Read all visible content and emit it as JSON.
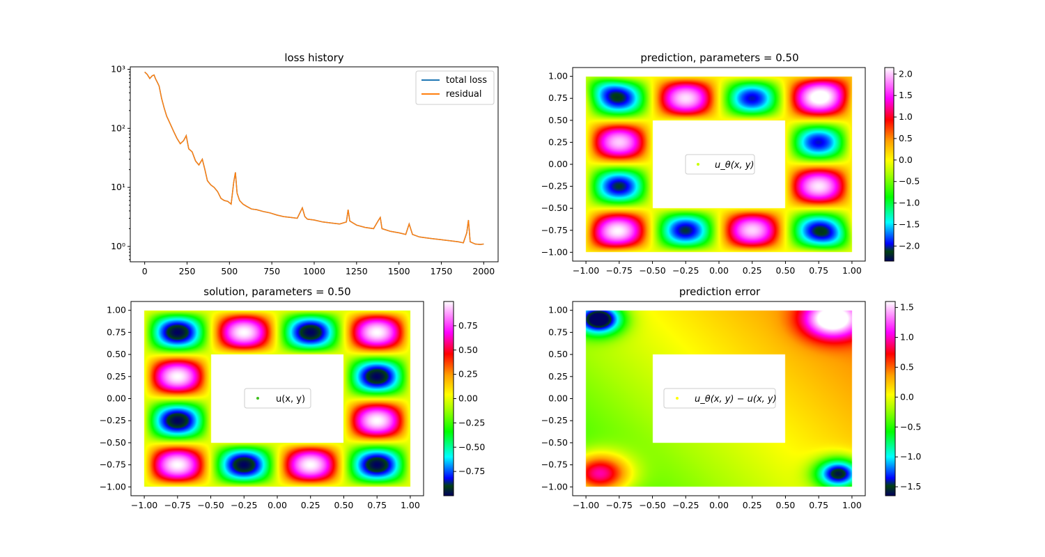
{
  "chart_data": [
    {
      "type": "line",
      "title": "loss history",
      "xlabel": "",
      "ylabel": "",
      "yscale": "log",
      "xlim": [
        -85,
        2085
      ],
      "ylim": [
        0.55,
        1100
      ],
      "x_ticks": [
        0,
        250,
        500,
        750,
        1000,
        1250,
        1500,
        1750,
        2000
      ],
      "x_tick_labels": [
        "0",
        "250",
        "500",
        "750",
        "1000",
        "1250",
        "1500",
        "1750",
        "2000"
      ],
      "y_ticks": [
        1,
        10,
        100,
        1000
      ],
      "y_tick_labels": [
        "10⁰",
        "10¹",
        "10²",
        "10³"
      ],
      "legend": {
        "position": "top-right",
        "entries": [
          "total loss",
          "residual"
        ]
      },
      "series": [
        {
          "name": "total loss",
          "color": "#1f77b4",
          "x": [
            0,
            15,
            30,
            45,
            55,
            65,
            75,
            85,
            100,
            115,
            130,
            150,
            170,
            190,
            210,
            230,
            245,
            260,
            280,
            300,
            320,
            340,
            355,
            370,
            390,
            410,
            430,
            450,
            470,
            490,
            510,
            525,
            535,
            545,
            560,
            580,
            600,
            630,
            660,
            700,
            740,
            780,
            820,
            860,
            900,
            930,
            945,
            960,
            1000,
            1050,
            1100,
            1150,
            1190,
            1200,
            1210,
            1250,
            1300,
            1350,
            1380,
            1390,
            1400,
            1450,
            1500,
            1540,
            1560,
            1580,
            1620,
            1660,
            1700,
            1750,
            1800,
            1850,
            1880,
            1900,
            1910,
            1920,
            1950,
            1980,
            2000
          ],
          "y": [
            900,
            820,
            700,
            780,
            800,
            680,
            600,
            520,
            320,
            220,
            160,
            120,
            90,
            68,
            55,
            62,
            75,
            45,
            40,
            28,
            24,
            30,
            20,
            13,
            11,
            10,
            8.5,
            6.5,
            6,
            5.8,
            5.2,
            12,
            18,
            8,
            6,
            5.2,
            4.8,
            4.3,
            4.2,
            3.9,
            3.7,
            3.4,
            3.2,
            3.1,
            3.0,
            4.5,
            3.2,
            2.9,
            2.8,
            2.6,
            2.5,
            2.4,
            2.6,
            4.2,
            2.7,
            2.3,
            2.1,
            2.0,
            2.8,
            3.1,
            2.0,
            1.8,
            1.7,
            1.6,
            2.4,
            1.6,
            1.45,
            1.4,
            1.35,
            1.3,
            1.25,
            1.2,
            1.15,
            1.7,
            2.8,
            1.2,
            1.1,
            1.08,
            1.1
          ]
        },
        {
          "name": "residual",
          "color": "#ff7f0e",
          "x": [
            0,
            15,
            30,
            45,
            55,
            65,
            75,
            85,
            100,
            115,
            130,
            150,
            170,
            190,
            210,
            230,
            245,
            260,
            280,
            300,
            320,
            340,
            355,
            370,
            390,
            410,
            430,
            450,
            470,
            490,
            510,
            525,
            535,
            545,
            560,
            580,
            600,
            630,
            660,
            700,
            740,
            780,
            820,
            860,
            900,
            930,
            945,
            960,
            1000,
            1050,
            1100,
            1150,
            1190,
            1200,
            1210,
            1250,
            1300,
            1350,
            1380,
            1390,
            1400,
            1450,
            1500,
            1540,
            1560,
            1580,
            1620,
            1660,
            1700,
            1750,
            1800,
            1850,
            1880,
            1900,
            1910,
            1920,
            1950,
            1980,
            2000
          ],
          "y": [
            900,
            820,
            700,
            780,
            800,
            680,
            600,
            520,
            320,
            220,
            160,
            120,
            90,
            68,
            55,
            62,
            75,
            45,
            40,
            28,
            24,
            30,
            20,
            13,
            11,
            10,
            8.5,
            6.5,
            6,
            5.8,
            5.2,
            12,
            18,
            8,
            6,
            5.2,
            4.8,
            4.3,
            4.2,
            3.9,
            3.7,
            3.4,
            3.2,
            3.1,
            3.0,
            4.5,
            3.2,
            2.9,
            2.8,
            2.6,
            2.5,
            2.4,
            2.6,
            4.2,
            2.7,
            2.3,
            2.1,
            2.0,
            2.8,
            3.1,
            2.0,
            1.8,
            1.7,
            1.6,
            2.4,
            1.6,
            1.45,
            1.4,
            1.35,
            1.3,
            1.25,
            1.2,
            1.15,
            1.7,
            2.8,
            1.2,
            1.1,
            1.08,
            1.1
          ]
        }
      ]
    },
    {
      "type": "heatmap",
      "title": "prediction, parameters = 0.50",
      "field": "prediction",
      "xlim": [
        -1.1,
        1.1
      ],
      "ylim": [
        -1.1,
        1.1
      ],
      "hole": [
        -0.5,
        0.5,
        -0.5,
        0.5
      ],
      "x_ticks": [
        -1.0,
        -0.75,
        -0.5,
        -0.25,
        0.0,
        0.25,
        0.5,
        0.75,
        1.0
      ],
      "x_tick_labels": [
        "−1.00",
        "−0.75",
        "−0.50",
        "−0.25",
        "0.00",
        "0.25",
        "0.50",
        "0.75",
        "1.00"
      ],
      "y_ticks": [
        -1.0,
        -0.75,
        -0.5,
        -0.25,
        0.0,
        0.25,
        0.5,
        0.75,
        1.0
      ],
      "y_tick_labels": [
        "−1.00",
        "−0.75",
        "−0.50",
        "−0.25",
        "0.00",
        "0.25",
        "0.50",
        "0.75",
        "1.00"
      ],
      "legend": {
        "position": "center",
        "entry": "u_θ(x, y)",
        "marker_color": "#c8ff00"
      },
      "colorbar": {
        "vmin": -2.35,
        "vmax": 2.15,
        "ticks": [
          -2.0,
          -1.5,
          -1.0,
          -0.5,
          0.0,
          0.5,
          1.0,
          1.5,
          2.0
        ],
        "tick_labels": [
          "−2.0",
          "−1.5",
          "−1.0",
          "−0.5",
          "0.0",
          "0.5",
          "1.0",
          "1.5",
          "2.0"
        ]
      }
    },
    {
      "type": "heatmap",
      "title": "solution, parameters = 0.50",
      "field": "solution",
      "xlim": [
        -1.1,
        1.1
      ],
      "ylim": [
        -1.1,
        1.1
      ],
      "hole": [
        -0.5,
        0.5,
        -0.5,
        0.5
      ],
      "x_ticks": [
        -1.0,
        -0.75,
        -0.5,
        -0.25,
        0.0,
        0.25,
        0.5,
        0.75,
        1.0
      ],
      "x_tick_labels": [
        "−1.00",
        "−0.75",
        "−0.50",
        "−0.25",
        "0.00",
        "0.25",
        "0.50",
        "0.75",
        "1.00"
      ],
      "y_ticks": [
        -1.0,
        -0.75,
        -0.5,
        -0.25,
        0.0,
        0.25,
        0.5,
        0.75,
        1.0
      ],
      "y_tick_labels": [
        "−1.00",
        "−0.75",
        "−0.50",
        "−0.25",
        "0.00",
        "0.25",
        "0.50",
        "0.75",
        "1.00"
      ],
      "legend": {
        "position": "center",
        "entry": "u(x, y)",
        "marker_color": "#3fbf1f"
      },
      "colorbar": {
        "vmin": -1.0,
        "vmax": 1.0,
        "ticks": [
          -0.75,
          -0.5,
          -0.25,
          0.0,
          0.25,
          0.5,
          0.75
        ],
        "tick_labels": [
          "−0.75",
          "−0.50",
          "−0.25",
          "0.00",
          "0.25",
          "0.50",
          "0.75"
        ]
      }
    },
    {
      "type": "heatmap",
      "title": "prediction error",
      "field": "error",
      "xlim": [
        -1.1,
        1.1
      ],
      "ylim": [
        -1.1,
        1.1
      ],
      "hole": [
        -0.5,
        0.5,
        -0.5,
        0.5
      ],
      "x_ticks": [
        -1.0,
        -0.75,
        -0.5,
        -0.25,
        0.0,
        0.25,
        0.5,
        0.75,
        1.0
      ],
      "x_tick_labels": [
        "−1.00",
        "−0.75",
        "−0.50",
        "−0.25",
        "0.00",
        "0.25",
        "0.50",
        "0.75",
        "1.00"
      ],
      "y_ticks": [
        -1.0,
        -0.75,
        -0.5,
        -0.25,
        0.0,
        0.25,
        0.5,
        0.75,
        1.0
      ],
      "y_tick_labels": [
        "−1.00",
        "−0.75",
        "−0.50",
        "−0.25",
        "0.00",
        "0.25",
        "0.50",
        "0.75",
        "1.00"
      ],
      "legend": {
        "position": "center",
        "entry": "u_θ(x, y) − u(x, y)",
        "marker_color": "#ffff00"
      },
      "colorbar": {
        "vmin": -1.65,
        "vmax": 1.6,
        "ticks": [
          -1.5,
          -1.0,
          -0.5,
          0.0,
          0.5,
          1.0,
          1.5
        ],
        "tick_labels": [
          "−1.5",
          "−1.0",
          "−0.5",
          "0.0",
          "0.5",
          "1.0",
          "1.5"
        ]
      }
    }
  ]
}
